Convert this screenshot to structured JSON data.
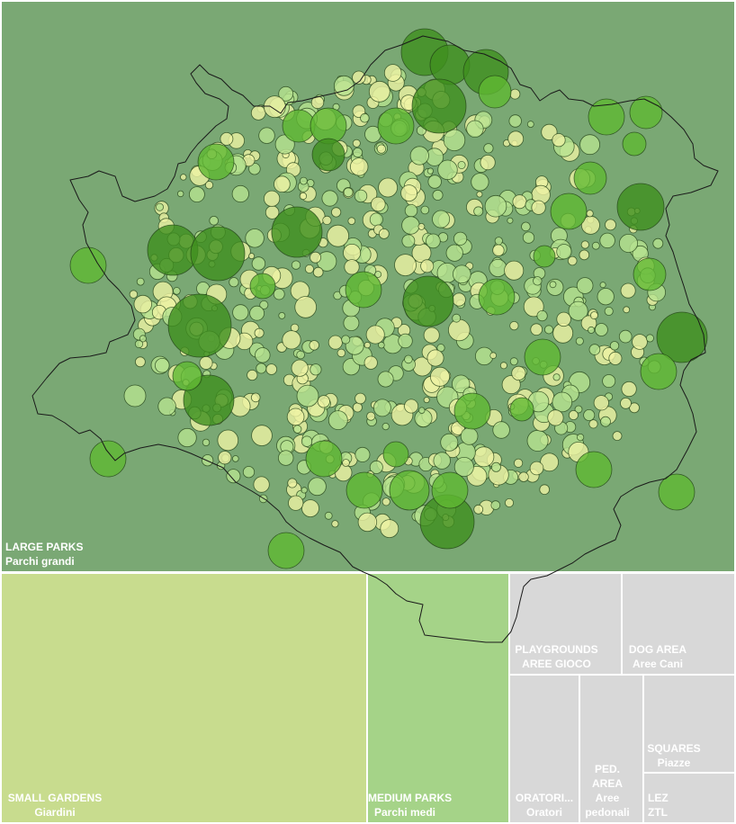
{
  "colors": {
    "large_parks": "#7aa874",
    "small_gardens": "#c8dc8e",
    "medium_parks": "#a5d388",
    "other_categories": "#d8d8d8",
    "circle_dark_green": "#3f8f1e",
    "circle_green": "#5fb832",
    "circle_light_green": "#b6e290",
    "circle_pale_yellow": "#eef2a4",
    "city_boundary": "#1a1a1a",
    "separator": "#ffffff"
  },
  "treemap": [
    {
      "key": "large_parks",
      "en": "LARGE PARKS",
      "it": "Parchi grandi"
    },
    {
      "key": "small_gardens",
      "en": "SMALL GARDENS",
      "it": "Giardini"
    },
    {
      "key": "medium_parks",
      "en": "MEDIUM PARKS",
      "it": "Parchi medi"
    },
    {
      "key": "playgrounds",
      "en": "PLAYGROUNDS",
      "it": "AREE GIOCO"
    },
    {
      "key": "dog_area",
      "en": "DOG AREA",
      "it": "Aree Cani"
    },
    {
      "key": "oratori",
      "en": "ORATORI...",
      "it": "Oratori"
    },
    {
      "key": "ped_area",
      "en": "PED. AREA",
      "it": "Aree pedonali"
    },
    {
      "key": "squares",
      "en": "SQUARES",
      "it": "Piazze"
    },
    {
      "key": "lez",
      "en": "LEZ",
      "it": "ZTL"
    }
  ]
}
